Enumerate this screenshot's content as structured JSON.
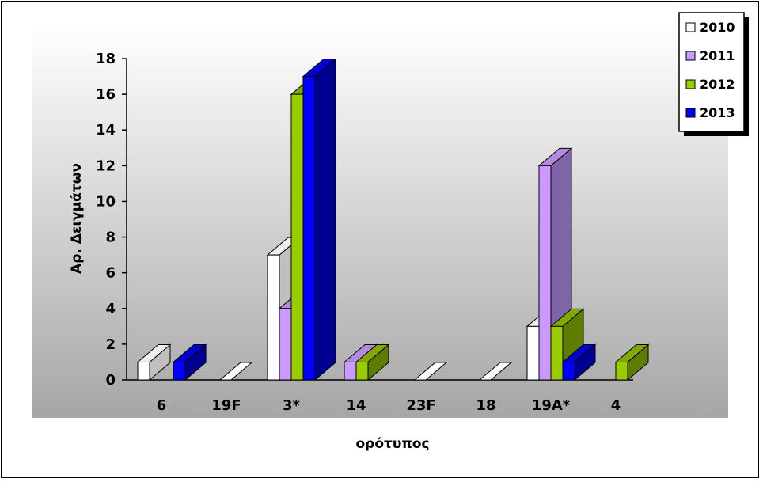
{
  "chart_data": {
    "type": "bar",
    "title": "",
    "xlabel": "ορότυπος",
    "ylabel": "Αρ. Δειγμάτων",
    "ylim": [
      0,
      18
    ],
    "yticks": [
      0,
      2,
      4,
      6,
      8,
      10,
      12,
      14,
      16,
      18
    ],
    "categories": [
      "6",
      "19F",
      "3*",
      "14",
      "23F",
      "18",
      "19A*",
      "4"
    ],
    "series": [
      {
        "name": "2010",
        "values": [
          1,
          0,
          7,
          0,
          0,
          0,
          3,
          0
        ],
        "color": "#ffffff",
        "side": "#c0c0c0",
        "top": "#f0f0f0"
      },
      {
        "name": "2011",
        "values": [
          0,
          0,
          4,
          1,
          0,
          0,
          12,
          0
        ],
        "color": "#cc99ff",
        "side": "#8064a8",
        "top": "#b28ae0"
      },
      {
        "name": "2012",
        "values": [
          0,
          0,
          16,
          1,
          0,
          0,
          3,
          1
        ],
        "color": "#99cc00",
        "side": "#5e7d00",
        "top": "#80aa00"
      },
      {
        "name": "2013",
        "values": [
          1,
          0,
          17,
          0,
          0,
          0,
          1,
          0
        ],
        "color": "#0000ff",
        "side": "#000090",
        "top": "#0000d0"
      }
    ],
    "legend_position": "top-right",
    "grid": false,
    "plot_background": "gradient-gray"
  }
}
